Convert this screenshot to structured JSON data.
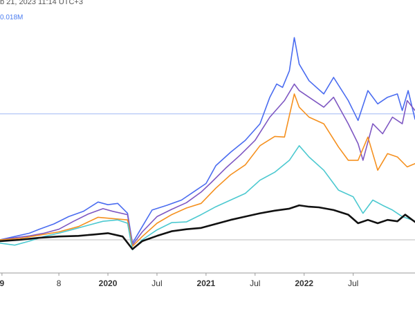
{
  "header": {
    "timestamp_text": "b 21, 2023 11:14 UTC+3",
    "value_text": "0.018M"
  },
  "colors": {
    "blue": "#4a6cf0",
    "purple": "#7e57c2",
    "orange": "#f5901e",
    "cyan": "#4cc9d0",
    "black": "#111111",
    "hline": "#9fb8f5",
    "axis": "#999999"
  },
  "chart_data": {
    "type": "line",
    "title": "",
    "xlabel": "",
    "ylabel": "",
    "x_ticks": [
      {
        "label": "9",
        "t": 2018.92,
        "bold": true
      },
      {
        "label": "8",
        "t": 2019.5,
        "bold": false
      },
      {
        "label": "2020",
        "t": 2020.0,
        "bold": true
      },
      {
        "label": "Jul",
        "t": 2020.5,
        "bold": false
      },
      {
        "label": "2021",
        "t": 2021.0,
        "bold": true
      },
      {
        "label": "Jul",
        "t": 2021.5,
        "bold": false
      },
      {
        "label": "2022",
        "t": 2022.0,
        "bold": true
      },
      {
        "label": "Jul",
        "t": 2022.5,
        "bold": false
      }
    ],
    "xlim": [
      2018.9,
      2023.13
    ],
    "ylim": [
      0.5,
      4.2
    ],
    "hline_value": 2.9,
    "baseline_value": 1.0,
    "series": [
      {
        "color": "#4a6cf0",
        "points": [
          [
            2018.9,
            1.0
          ],
          [
            2019.05,
            1.05
          ],
          [
            2019.2,
            1.1
          ],
          [
            2019.3,
            1.16
          ],
          [
            2019.45,
            1.24
          ],
          [
            2019.6,
            1.35
          ],
          [
            2019.75,
            1.43
          ],
          [
            2019.9,
            1.57
          ],
          [
            2020.0,
            1.53
          ],
          [
            2020.1,
            1.55
          ],
          [
            2020.2,
            1.4
          ],
          [
            2020.25,
            0.95
          ],
          [
            2020.35,
            1.2
          ],
          [
            2020.45,
            1.45
          ],
          [
            2020.6,
            1.52
          ],
          [
            2020.75,
            1.6
          ],
          [
            2020.9,
            1.75
          ],
          [
            2021.0,
            1.85
          ],
          [
            2021.1,
            2.12
          ],
          [
            2021.25,
            2.32
          ],
          [
            2021.4,
            2.5
          ],
          [
            2021.55,
            2.75
          ],
          [
            2021.65,
            3.15
          ],
          [
            2021.72,
            3.35
          ],
          [
            2021.78,
            3.3
          ],
          [
            2021.85,
            3.55
          ],
          [
            2021.9,
            4.05
          ],
          [
            2021.95,
            3.65
          ],
          [
            2022.05,
            3.4
          ],
          [
            2022.2,
            3.2
          ],
          [
            2022.3,
            3.45
          ],
          [
            2022.45,
            3.1
          ],
          [
            2022.55,
            2.8
          ],
          [
            2022.65,
            3.25
          ],
          [
            2022.75,
            3.05
          ],
          [
            2022.85,
            3.15
          ],
          [
            2022.95,
            3.2
          ],
          [
            2023.0,
            2.95
          ],
          [
            2023.06,
            3.25
          ],
          [
            2023.13,
            2.82
          ]
        ]
      },
      {
        "color": "#7e57c2",
        "points": [
          [
            2018.9,
            1.0
          ],
          [
            2019.05,
            1.03
          ],
          [
            2019.2,
            1.06
          ],
          [
            2019.35,
            1.1
          ],
          [
            2019.5,
            1.16
          ],
          [
            2019.65,
            1.28
          ],
          [
            2019.8,
            1.39
          ],
          [
            2019.95,
            1.47
          ],
          [
            2020.05,
            1.43
          ],
          [
            2020.2,
            1.38
          ],
          [
            2020.25,
            0.92
          ],
          [
            2020.35,
            1.12
          ],
          [
            2020.5,
            1.35
          ],
          [
            2020.65,
            1.46
          ],
          [
            2020.8,
            1.56
          ],
          [
            2020.95,
            1.72
          ],
          [
            2021.05,
            1.86
          ],
          [
            2021.2,
            2.08
          ],
          [
            2021.35,
            2.28
          ],
          [
            2021.5,
            2.5
          ],
          [
            2021.65,
            2.85
          ],
          [
            2021.8,
            3.1
          ],
          [
            2021.9,
            3.35
          ],
          [
            2021.95,
            3.25
          ],
          [
            2022.05,
            3.15
          ],
          [
            2022.2,
            3.0
          ],
          [
            2022.3,
            3.15
          ],
          [
            2022.45,
            2.75
          ],
          [
            2022.55,
            2.45
          ],
          [
            2022.6,
            2.2
          ],
          [
            2022.7,
            2.75
          ],
          [
            2022.8,
            2.6
          ],
          [
            2022.9,
            2.85
          ],
          [
            2023.0,
            2.75
          ],
          [
            2023.05,
            3.1
          ],
          [
            2023.13,
            2.95
          ]
        ]
      },
      {
        "color": "#f5901e",
        "points": [
          [
            2018.9,
            1.0
          ],
          [
            2019.1,
            1.02
          ],
          [
            2019.3,
            1.07
          ],
          [
            2019.5,
            1.12
          ],
          [
            2019.7,
            1.2
          ],
          [
            2019.9,
            1.34
          ],
          [
            2020.05,
            1.32
          ],
          [
            2020.2,
            1.3
          ],
          [
            2020.25,
            0.9
          ],
          [
            2020.35,
            1.05
          ],
          [
            2020.5,
            1.25
          ],
          [
            2020.65,
            1.38
          ],
          [
            2020.8,
            1.48
          ],
          [
            2020.95,
            1.55
          ],
          [
            2021.1,
            1.78
          ],
          [
            2021.25,
            1.98
          ],
          [
            2021.4,
            2.13
          ],
          [
            2021.55,
            2.42
          ],
          [
            2021.7,
            2.56
          ],
          [
            2021.8,
            2.55
          ],
          [
            2021.9,
            3.2
          ],
          [
            2021.95,
            3.0
          ],
          [
            2022.05,
            2.85
          ],
          [
            2022.2,
            2.75
          ],
          [
            2022.35,
            2.4
          ],
          [
            2022.45,
            2.2
          ],
          [
            2022.55,
            2.2
          ],
          [
            2022.65,
            2.55
          ],
          [
            2022.75,
            2.05
          ],
          [
            2022.85,
            2.3
          ],
          [
            2022.95,
            2.25
          ],
          [
            2023.05,
            2.1
          ],
          [
            2023.13,
            2.15
          ]
        ]
      },
      {
        "color": "#4cc9d0",
        "points": [
          [
            2018.9,
            0.95
          ],
          [
            2019.05,
            0.92
          ],
          [
            2019.2,
            0.98
          ],
          [
            2019.35,
            1.05
          ],
          [
            2019.5,
            1.1
          ],
          [
            2019.65,
            1.16
          ],
          [
            2019.8,
            1.22
          ],
          [
            2019.95,
            1.28
          ],
          [
            2020.1,
            1.3
          ],
          [
            2020.2,
            1.25
          ],
          [
            2020.25,
            0.85
          ],
          [
            2020.35,
            1.0
          ],
          [
            2020.5,
            1.15
          ],
          [
            2020.65,
            1.26
          ],
          [
            2020.8,
            1.27
          ],
          [
            2020.95,
            1.38
          ],
          [
            2021.1,
            1.5
          ],
          [
            2021.25,
            1.6
          ],
          [
            2021.4,
            1.7
          ],
          [
            2021.55,
            1.9
          ],
          [
            2021.7,
            2.02
          ],
          [
            2021.85,
            2.2
          ],
          [
            2021.95,
            2.42
          ],
          [
            2022.05,
            2.25
          ],
          [
            2022.2,
            2.05
          ],
          [
            2022.35,
            1.75
          ],
          [
            2022.5,
            1.65
          ],
          [
            2022.6,
            1.4
          ],
          [
            2022.7,
            1.6
          ],
          [
            2022.8,
            1.52
          ],
          [
            2022.9,
            1.45
          ],
          [
            2023.0,
            1.35
          ],
          [
            2023.1,
            1.3
          ],
          [
            2023.13,
            1.28
          ]
        ]
      },
      {
        "color": "#111111",
        "points": [
          [
            2018.9,
            0.98
          ],
          [
            2019.1,
            1.0
          ],
          [
            2019.3,
            1.03
          ],
          [
            2019.5,
            1.05
          ],
          [
            2019.7,
            1.06
          ],
          [
            2019.85,
            1.08
          ],
          [
            2020.0,
            1.1
          ],
          [
            2020.15,
            1.05
          ],
          [
            2020.25,
            0.86
          ],
          [
            2020.35,
            0.98
          ],
          [
            2020.5,
            1.06
          ],
          [
            2020.65,
            1.13
          ],
          [
            2020.8,
            1.16
          ],
          [
            2020.95,
            1.18
          ],
          [
            2021.1,
            1.24
          ],
          [
            2021.25,
            1.3
          ],
          [
            2021.4,
            1.35
          ],
          [
            2021.55,
            1.4
          ],
          [
            2021.7,
            1.44
          ],
          [
            2021.85,
            1.47
          ],
          [
            2021.95,
            1.52
          ],
          [
            2022.05,
            1.5
          ],
          [
            2022.15,
            1.49
          ],
          [
            2022.3,
            1.45
          ],
          [
            2022.45,
            1.38
          ],
          [
            2022.55,
            1.25
          ],
          [
            2022.65,
            1.3
          ],
          [
            2022.75,
            1.25
          ],
          [
            2022.85,
            1.3
          ],
          [
            2022.95,
            1.28
          ],
          [
            2023.03,
            1.38
          ],
          [
            2023.13,
            1.27
          ]
        ]
      }
    ]
  }
}
